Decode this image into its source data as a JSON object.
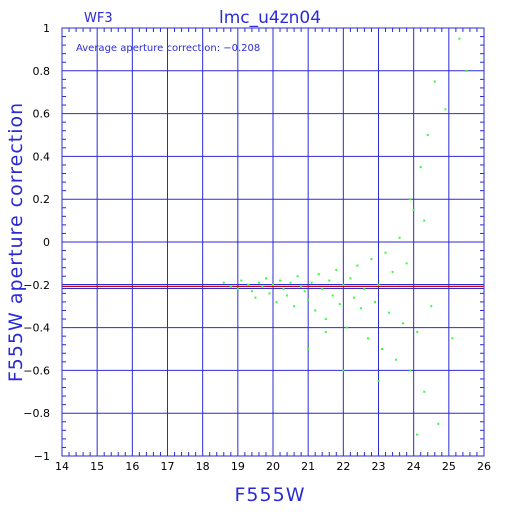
{
  "chart_data": {
    "type": "scatter",
    "title": "lmc_u4zn04",
    "panel_label": "WF3",
    "xlabel": "F555W",
    "ylabel": "F555W aperture correction",
    "annotation": "Average aperture correction: −0.208",
    "average_correction": -0.208,
    "xlim": [
      14,
      26
    ],
    "ylim": [
      -1,
      1
    ],
    "x_ticks": [
      14,
      15,
      16,
      17,
      18,
      19,
      20,
      21,
      22,
      23,
      24,
      25,
      26
    ],
    "y_ticks": [
      -1,
      -0.8,
      -0.6,
      -0.4,
      -0.2,
      0,
      0.2,
      0.4,
      0.6,
      0.8,
      1
    ],
    "x_tick_labels": [
      "14",
      "15",
      "16",
      "17",
      "18",
      "19",
      "20",
      "21",
      "22",
      "23",
      "24",
      "25",
      "26"
    ],
    "y_tick_labels": [
      "−1",
      "−0.8",
      "−0.6",
      "−0.4",
      "−0.2",
      "0",
      "0.2",
      "0.4",
      "0.6",
      "0.8",
      "1"
    ],
    "grid": true,
    "colors": {
      "points": "#33ff33",
      "grid": "#2b2bd6",
      "average_line": "#cc0000",
      "text": "#2b2bd6"
    },
    "series": [
      {
        "points": [
          [
            18.6,
            -0.19
          ],
          [
            18.8,
            -0.21
          ],
          [
            19.0,
            -0.22
          ],
          [
            19.1,
            -0.18
          ],
          [
            19.3,
            -0.2
          ],
          [
            19.4,
            -0.23
          ],
          [
            19.5,
            -0.26
          ],
          [
            19.6,
            -0.19
          ],
          [
            19.7,
            -0.21
          ],
          [
            19.8,
            -0.17
          ],
          [
            19.9,
            -0.24
          ],
          [
            20.0,
            -0.2
          ],
          [
            20.1,
            -0.28
          ],
          [
            20.2,
            -0.18
          ],
          [
            20.3,
            -0.22
          ],
          [
            20.4,
            -0.25
          ],
          [
            20.5,
            -0.19
          ],
          [
            20.6,
            -0.3
          ],
          [
            20.7,
            -0.16
          ],
          [
            20.8,
            -0.21
          ],
          [
            20.9,
            -0.23
          ],
          [
            21.0,
            -0.27
          ],
          [
            21.1,
            -0.19
          ],
          [
            21.2,
            -0.32
          ],
          [
            21.3,
            -0.15
          ],
          [
            21.4,
            -0.22
          ],
          [
            21.5,
            -0.36
          ],
          [
            21.6,
            -0.18
          ],
          [
            21.7,
            -0.25
          ],
          [
            21.8,
            -0.13
          ],
          [
            21.9,
            -0.29
          ],
          [
            22.0,
            -0.2
          ],
          [
            22.1,
            -0.4
          ],
          [
            22.2,
            -0.17
          ],
          [
            22.3,
            -0.26
          ],
          [
            22.4,
            -0.11
          ],
          [
            22.5,
            -0.31
          ],
          [
            22.6,
            -0.22
          ],
          [
            22.7,
            -0.45
          ],
          [
            22.8,
            -0.08
          ],
          [
            22.9,
            -0.28
          ],
          [
            23.0,
            -0.2
          ],
          [
            23.1,
            -0.5
          ],
          [
            23.2,
            -0.05
          ],
          [
            23.3,
            -0.33
          ],
          [
            23.4,
            -0.14
          ],
          [
            23.5,
            -0.55
          ],
          [
            23.6,
            0.02
          ],
          [
            23.7,
            -0.38
          ],
          [
            23.8,
            -0.1
          ],
          [
            23.9,
            -0.6
          ],
          [
            24.0,
            0.15
          ],
          [
            24.1,
            -0.42
          ],
          [
            24.2,
            0.35
          ],
          [
            24.3,
            -0.7
          ],
          [
            24.4,
            0.5
          ],
          [
            24.5,
            -0.3
          ],
          [
            24.6,
            0.75
          ],
          [
            24.7,
            -0.85
          ],
          [
            24.9,
            0.62
          ],
          [
            25.1,
            -0.45
          ],
          [
            25.3,
            0.95
          ],
          [
            25.5,
            0.8
          ],
          [
            23.9,
            0.2
          ],
          [
            24.3,
            0.1
          ],
          [
            21.5,
            -0.42
          ],
          [
            22.0,
            -0.6
          ],
          [
            21.0,
            -0.5
          ],
          [
            23.0,
            -0.65
          ],
          [
            24.1,
            -0.9
          ]
        ]
      }
    ]
  }
}
